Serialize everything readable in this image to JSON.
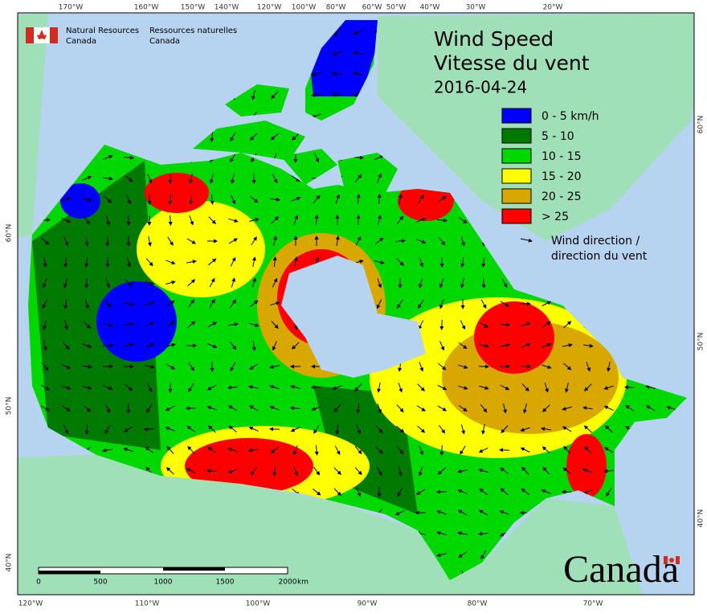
{
  "header": {
    "org_en": [
      "Natural Resources",
      "Canada"
    ],
    "org_fr": [
      "Ressources naturelles",
      "Canada"
    ]
  },
  "title": {
    "en": "Wind Speed",
    "fr": "Vitesse du vent",
    "date": "2016-04-24"
  },
  "legend": {
    "items": [
      {
        "label": "0 - 5 km/h",
        "color": "#0000ff"
      },
      {
        "label": "5 - 10",
        "color": "#007a00"
      },
      {
        "label": "10 - 15",
        "color": "#00d800"
      },
      {
        "label": "15 - 20",
        "color": "#ffff00"
      },
      {
        "label": "20 - 25",
        "color": "#d8a800"
      },
      {
        "label": "> 25",
        "color": "#ff0000"
      }
    ],
    "direction": [
      "Wind direction /",
      "direction du vent"
    ]
  },
  "graticule": {
    "top": [
      "170°W",
      "160°W",
      "150°W",
      "140°W",
      "120°W",
      "100°W",
      "80°W",
      "60°W",
      "50°W",
      "40°W",
      "30°W",
      "20°W"
    ],
    "bottom": [
      "120°W",
      "110°W",
      "100°W",
      "90°W",
      "80°W",
      "70°W"
    ],
    "left": [
      "60°N",
      "50°N",
      "40°N"
    ],
    "right": [
      "60°N",
      "50°N",
      "40°N"
    ]
  },
  "scale_bar": {
    "labels": [
      "0",
      "500",
      "1000",
      "1500",
      "2000"
    ],
    "unit": "km"
  },
  "wordmark": "Canada"
}
